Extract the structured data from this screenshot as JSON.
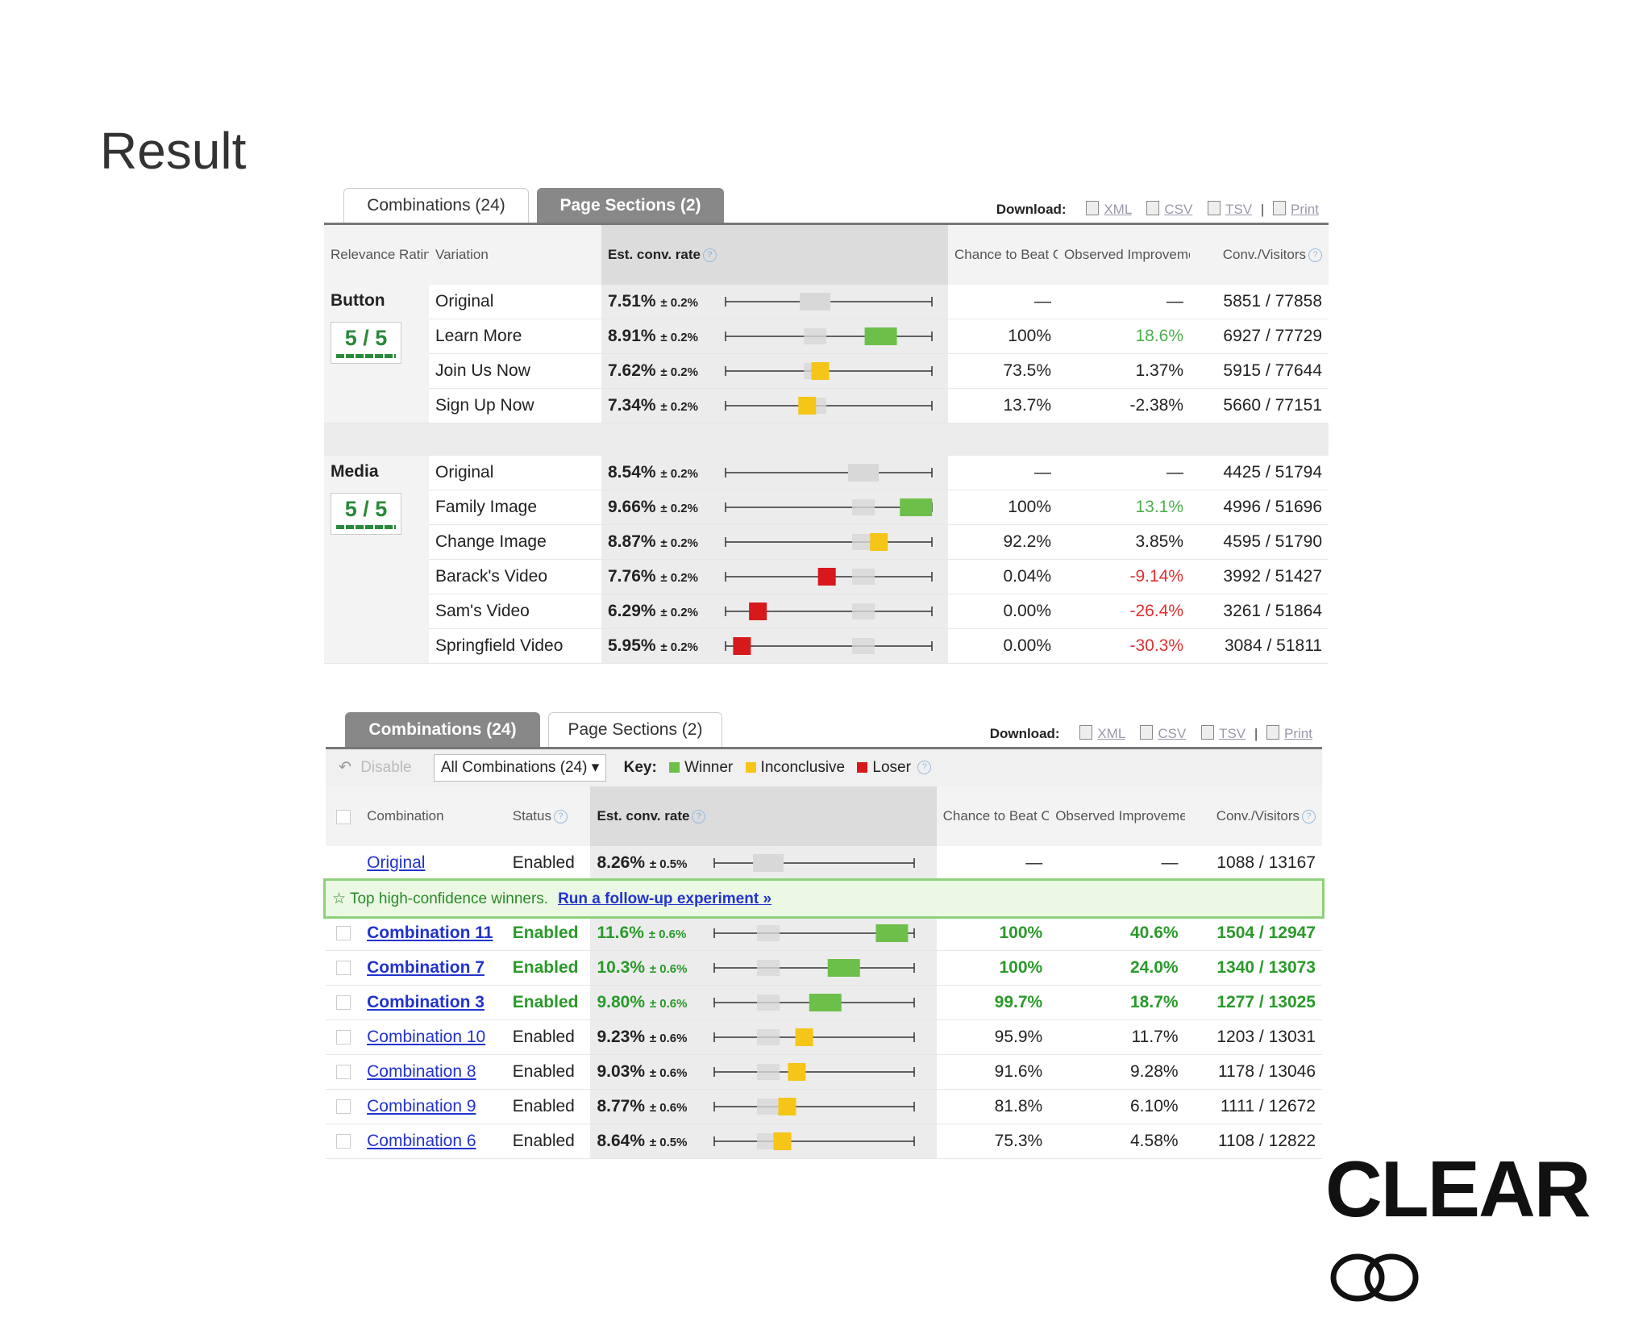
{
  "slide": {
    "title": "Result"
  },
  "logo": {
    "text": "CLEAR"
  },
  "download": {
    "label": "Download:",
    "xml": "XML",
    "csv": "CSV",
    "tsv": "TSV",
    "print": "Print",
    "sep": "|"
  },
  "top_panel": {
    "tabs": [
      {
        "label": "Combinations (24)",
        "active": false
      },
      {
        "label": "Page Sections (2)",
        "active": true
      }
    ],
    "headers": {
      "relevance": "Relevance Rating",
      "variation": "Variation",
      "est": "Est. conv. rate",
      "chance": "Chance to Beat Orig.",
      "observed": "Observed Improvement",
      "conv": "Conv./Visitors"
    },
    "sections": [
      {
        "name": "Button",
        "rating": "5 / 5",
        "rows": [
          {
            "variation": "Original",
            "rate": "7.51%",
            "ci": "± 0.2%",
            "value": 7.51,
            "status": "baseline",
            "chance": "—",
            "improvement": "—",
            "conv": "5851 / 77858",
            "tone": ""
          },
          {
            "variation": "Learn More",
            "rate": "8.91%",
            "ci": "± 0.2%",
            "value": 8.91,
            "status": "winner",
            "chance": "100%",
            "improvement": "18.6%",
            "conv": "6927 / 77729",
            "tone": "pos"
          },
          {
            "variation": "Join Us Now",
            "rate": "7.62%",
            "ci": "± 0.2%",
            "value": 7.62,
            "status": "inconclusive",
            "chance": "73.5%",
            "improvement": "1.37%",
            "conv": "5915 / 77644",
            "tone": ""
          },
          {
            "variation": "Sign Up Now",
            "rate": "7.34%",
            "ci": "± 0.2%",
            "value": 7.34,
            "status": "inconclusive",
            "chance": "13.7%",
            "improvement": "-2.38%",
            "conv": "5660 / 77151",
            "tone": ""
          }
        ]
      },
      {
        "name": "Media",
        "rating": "5 / 5",
        "rows": [
          {
            "variation": "Original",
            "rate": "8.54%",
            "ci": "± 0.2%",
            "value": 8.54,
            "status": "baseline",
            "chance": "—",
            "improvement": "—",
            "conv": "4425 / 51794",
            "tone": ""
          },
          {
            "variation": "Family Image",
            "rate": "9.66%",
            "ci": "± 0.2%",
            "value": 9.66,
            "status": "winner",
            "chance": "100%",
            "improvement": "13.1%",
            "conv": "4996 / 51696",
            "tone": "pos"
          },
          {
            "variation": "Change Image",
            "rate": "8.87%",
            "ci": "± 0.2%",
            "value": 8.87,
            "status": "inconclusive",
            "chance": "92.2%",
            "improvement": "3.85%",
            "conv": "4595 / 51790",
            "tone": ""
          },
          {
            "variation": "Barack's Video",
            "rate": "7.76%",
            "ci": "± 0.2%",
            "value": 7.76,
            "status": "loser",
            "chance": "0.04%",
            "improvement": "-9.14%",
            "conv": "3992 / 51427",
            "tone": "neg"
          },
          {
            "variation": "Sam's Video",
            "rate": "6.29%",
            "ci": "± 0.2%",
            "value": 6.29,
            "status": "loser",
            "chance": "0.00%",
            "improvement": "-26.4%",
            "conv": "3261 / 51864",
            "tone": "neg"
          },
          {
            "variation": "Springfield Video",
            "rate": "5.95%",
            "ci": "± 0.2%",
            "value": 5.95,
            "status": "loser",
            "chance": "0.00%",
            "improvement": "-30.3%",
            "conv": "3084 / 51811",
            "tone": "neg"
          }
        ]
      }
    ]
  },
  "bottom_panel": {
    "tabs": [
      {
        "label": "Combinations (24)",
        "active": true
      },
      {
        "label": "Page Sections (2)",
        "active": false
      }
    ],
    "toolbar": {
      "disable": "Disable",
      "filter": "All Combinations (24)",
      "key_label": "Key:",
      "winner": "Winner",
      "inconclusive": "Inconclusive",
      "loser": "Loser"
    },
    "headers": {
      "combination": "Combination",
      "status": "Status",
      "est": "Est. conv. rate",
      "chance": "Chance to Beat Orig.",
      "observed": "Observed Improvement",
      "conv": "Conv./Visitors"
    },
    "banner": {
      "text": "Top high-confidence winners.",
      "link": "Run a follow-up experiment »"
    },
    "original": {
      "name": "Original",
      "status": "Enabled",
      "rate": "8.26%",
      "ci": "± 0.5%",
      "value": 8.26,
      "chance": "—",
      "improvement": "—",
      "conv": "1088 / 13167"
    },
    "winners": [
      {
        "name": "Combination 11",
        "status": "Enabled",
        "rate": "11.6%",
        "ci": "± 0.6%",
        "value": 11.6,
        "chance": "100%",
        "improvement": "40.6%",
        "conv": "1504 / 12947"
      },
      {
        "name": "Combination 7",
        "status": "Enabled",
        "rate": "10.3%",
        "ci": "± 0.6%",
        "value": 10.3,
        "chance": "100%",
        "improvement": "24.0%",
        "conv": "1340 / 13073"
      },
      {
        "name": "Combination 3",
        "status": "Enabled",
        "rate": "9.80%",
        "ci": "± 0.6%",
        "value": 9.8,
        "chance": "99.7%",
        "improvement": "18.7%",
        "conv": "1277 / 13025"
      }
    ],
    "others": [
      {
        "name": "Combination 10",
        "status": "Enabled",
        "rate": "9.23%",
        "ci": "± 0.6%",
        "value": 9.23,
        "chance": "95.9%",
        "improvement": "11.7%",
        "conv": "1203 / 13031"
      },
      {
        "name": "Combination 8",
        "status": "Enabled",
        "rate": "9.03%",
        "ci": "± 0.6%",
        "value": 9.03,
        "chance": "91.6%",
        "improvement": "9.28%",
        "conv": "1178 / 13046"
      },
      {
        "name": "Combination 9",
        "status": "Enabled",
        "rate": "8.77%",
        "ci": "± 0.6%",
        "value": 8.77,
        "chance": "81.8%",
        "improvement": "6.10%",
        "conv": "1111 / 12672"
      },
      {
        "name": "Combination 6",
        "status": "Enabled",
        "rate": "8.64%",
        "ci": "± 0.5%",
        "value": 8.64,
        "chance": "75.3%",
        "improvement": "4.58%",
        "conv": "1108 / 12822"
      }
    ]
  },
  "colors": {
    "winner": "#6cc04a",
    "inconclusive": "#f5c518",
    "loser": "#d7191c",
    "baseline": "#d8d8d8"
  }
}
